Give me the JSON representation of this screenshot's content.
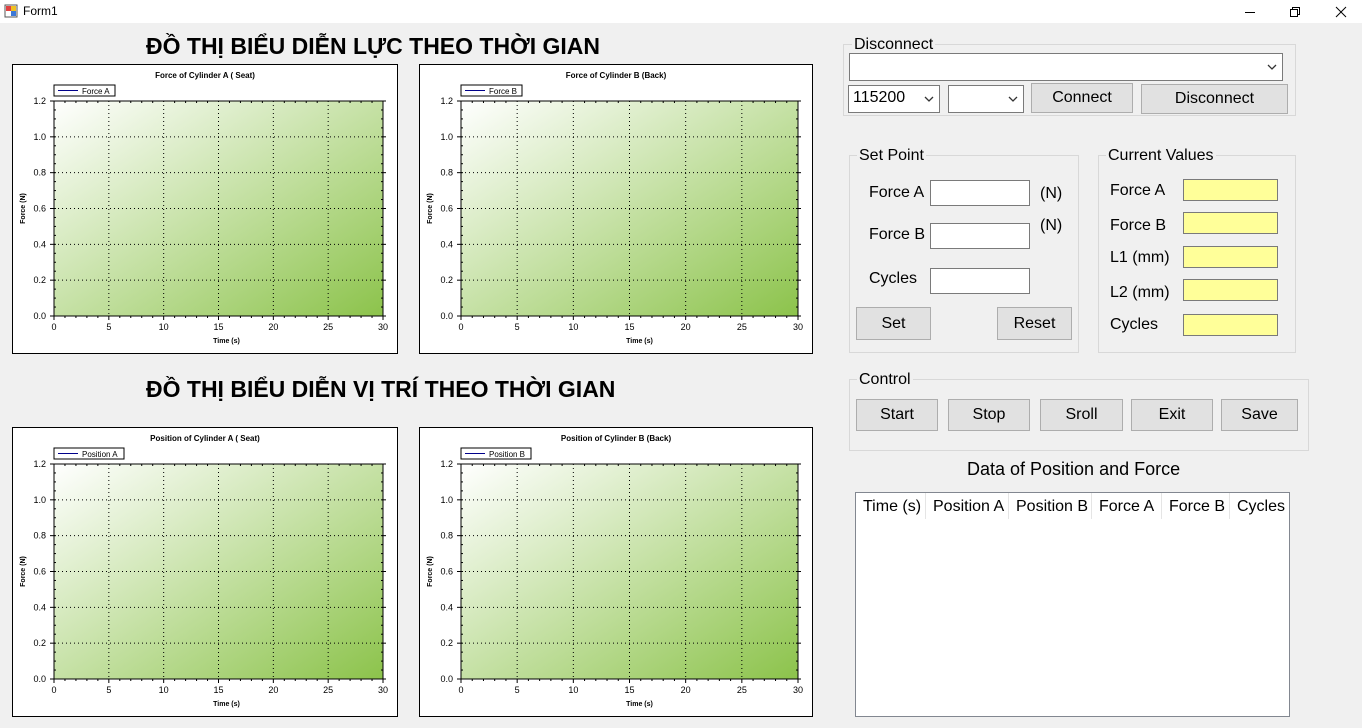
{
  "window": {
    "title": "Form1",
    "colors": {
      "background": "#f0f0f0",
      "readout": "#ffff99",
      "plot_green_dark": "#8cc34b"
    }
  },
  "headings": {
    "force": "ĐỒ THỊ BIỂU DIỄN LỰC THEO THỜI GIAN",
    "position": "ĐỒ THỊ BIỂU DIỄN VỊ TRÍ THEO THỜI GIAN"
  },
  "chart_data": [
    {
      "type": "line",
      "title": "Force of Cylinder A ( Seat)",
      "xlabel": "Time (s)",
      "ylabel": "Force (N)",
      "legend": "Force A",
      "legend_placement": "top-left",
      "xlim": [
        0,
        30
      ],
      "ylim": [
        0.0,
        1.2
      ],
      "xticks": [
        "0",
        "5",
        "10",
        "15",
        "20",
        "25",
        "30"
      ],
      "yticks": [
        "0.0",
        "0.2",
        "0.4",
        "0.6",
        "0.8",
        "1.0",
        "1.2"
      ],
      "grid": true,
      "series": [
        {
          "name": "Force A",
          "x": [],
          "y": []
        }
      ]
    },
    {
      "type": "line",
      "title": "Force of Cylinder B (Back)",
      "xlabel": "Time (s)",
      "ylabel": "Force (N)",
      "legend": "Force B",
      "legend_placement": "top-left",
      "xlim": [
        0,
        30
      ],
      "ylim": [
        0.0,
        1.2
      ],
      "xticks": [
        "0",
        "5",
        "10",
        "15",
        "20",
        "25",
        "30"
      ],
      "yticks": [
        "0.0",
        "0.2",
        "0.4",
        "0.6",
        "0.8",
        "1.0",
        "1.2"
      ],
      "grid": true,
      "series": [
        {
          "name": "Force B",
          "x": [],
          "y": []
        }
      ]
    },
    {
      "type": "line",
      "title": "Position of Cylinder A ( Seat)",
      "xlabel": "Time (s)",
      "ylabel": "Force (N)",
      "legend": "Position A",
      "legend_placement": "top-left",
      "xlim": [
        0,
        30
      ],
      "ylim": [
        0.0,
        1.2
      ],
      "xticks": [
        "0",
        "5",
        "10",
        "15",
        "20",
        "25",
        "30"
      ],
      "yticks": [
        "0.0",
        "0.2",
        "0.4",
        "0.6",
        "0.8",
        "1.0",
        "1.2"
      ],
      "grid": true,
      "series": [
        {
          "name": "Position A",
          "x": [],
          "y": []
        }
      ]
    },
    {
      "type": "line",
      "title": "Position of Cylinder B (Back)",
      "xlabel": "Time (s)",
      "ylabel": "Force (N)",
      "legend": "Position B",
      "legend_placement": "top-left",
      "xlim": [
        0,
        30
      ],
      "ylim": [
        0.0,
        1.2
      ],
      "xticks": [
        "0",
        "5",
        "10",
        "15",
        "20",
        "25",
        "30"
      ],
      "yticks": [
        "0.0",
        "0.2",
        "0.4",
        "0.6",
        "0.8",
        "1.0",
        "1.2"
      ],
      "grid": true,
      "series": [
        {
          "name": "Position B",
          "x": [],
          "y": []
        }
      ]
    }
  ],
  "connection": {
    "group_label": "Disconnect",
    "port_value": "",
    "baud_value": "115200",
    "second_value": "",
    "connect_label": "Connect",
    "disconnect_label": "Disconnect"
  },
  "setpoint": {
    "group_label": "Set Point",
    "force_a_label": "Force A",
    "force_b_label": "Force B",
    "cycles_label": "Cycles",
    "unit_a": "(N)",
    "unit_b": "(N)",
    "force_a_value": "",
    "force_b_value": "",
    "cycles_value": "",
    "set_label": "Set",
    "reset_label": "Reset"
  },
  "current": {
    "group_label": "Current Values",
    "force_a_label": "Force A",
    "force_b_label": "Force B",
    "l1_label": "L1 (mm)",
    "l2_label": "L2 (mm)",
    "cycles_label": "Cycles"
  },
  "control": {
    "group_label": "Control",
    "start_label": "Start",
    "stop_label": "Stop",
    "scroll_label": "Sroll",
    "exit_label": "Exit",
    "save_label": "Save"
  },
  "table": {
    "title": "Data of Position and Force",
    "columns": [
      "Time (s)",
      "Position A",
      "Position B",
      "Force A",
      "Force B",
      "Cycles"
    ],
    "rows": []
  }
}
